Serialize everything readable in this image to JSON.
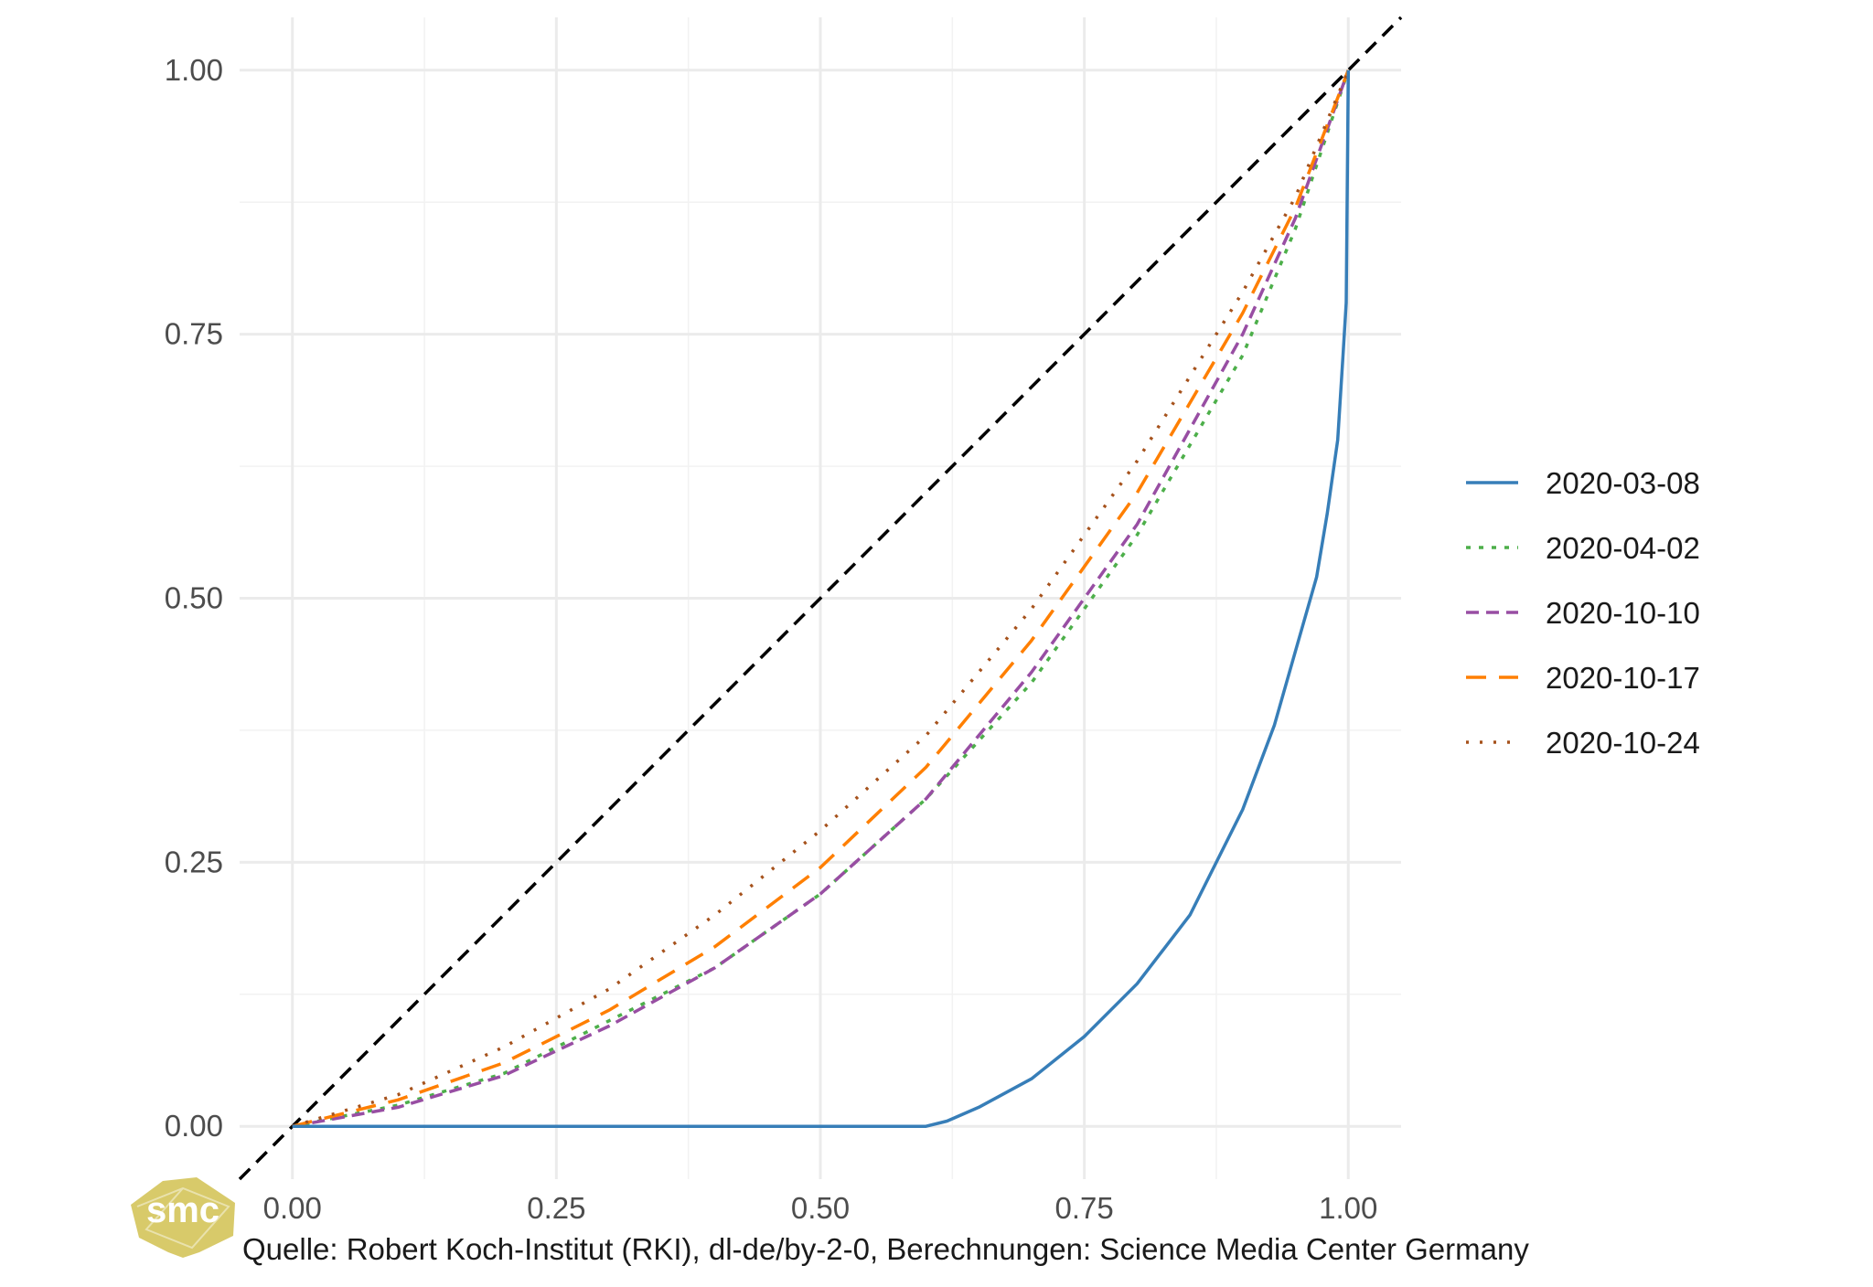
{
  "chart_data": {
    "type": "line",
    "xlim": [
      -0.05,
      1.05
    ],
    "ylim": [
      -0.05,
      1.05
    ],
    "x_ticks": [
      0,
      0.25,
      0.5,
      0.75,
      1
    ],
    "x_tick_labels": [
      "0.00",
      "0.25",
      "0.50",
      "0.75",
      "1.00"
    ],
    "y_ticks": [
      0,
      0.25,
      0.5,
      0.75,
      1
    ],
    "y_tick_labels": [
      "0.00",
      "0.25",
      "0.50",
      "0.75",
      "1.00"
    ],
    "grid": true,
    "legend_position": "right",
    "reference_line": {
      "style": "dashed",
      "color": "#000000",
      "x": [
        -0.05,
        1.05
      ],
      "y": [
        -0.05,
        1.05
      ]
    },
    "series": [
      {
        "name": "2020-03-08",
        "color": "#377EB8",
        "dash": "solid",
        "x": [
          0,
          0.6,
          0.62,
          0.65,
          0.7,
          0.75,
          0.8,
          0.85,
          0.9,
          0.93,
          0.95,
          0.97,
          0.98,
          0.99,
          0.995,
          0.998,
          1.0
        ],
        "y": [
          0,
          0,
          0.005,
          0.018,
          0.045,
          0.085,
          0.135,
          0.2,
          0.3,
          0.38,
          0.45,
          0.52,
          0.58,
          0.65,
          0.73,
          0.78,
          1.0
        ]
      },
      {
        "name": "2020-04-02",
        "color": "#4DAF4A",
        "dash": "dotted",
        "x": [
          0,
          0.1,
          0.2,
          0.3,
          0.4,
          0.5,
          0.6,
          0.7,
          0.8,
          0.9,
          0.95,
          1.0
        ],
        "y": [
          0,
          0.02,
          0.05,
          0.1,
          0.15,
          0.22,
          0.31,
          0.42,
          0.56,
          0.73,
          0.85,
          1.0
        ]
      },
      {
        "name": "2020-10-10",
        "color": "#984EA3",
        "dash": "dashed",
        "x": [
          0,
          0.1,
          0.2,
          0.3,
          0.4,
          0.5,
          0.6,
          0.7,
          0.8,
          0.9,
          0.95,
          1.0
        ],
        "y": [
          0,
          0.018,
          0.048,
          0.095,
          0.15,
          0.22,
          0.31,
          0.43,
          0.57,
          0.75,
          0.86,
          1.0
        ]
      },
      {
        "name": "2020-10-17",
        "color": "#FF7F00",
        "dash": "longdash",
        "x": [
          0,
          0.1,
          0.2,
          0.3,
          0.4,
          0.5,
          0.6,
          0.7,
          0.8,
          0.9,
          0.95,
          1.0
        ],
        "y": [
          0,
          0.025,
          0.06,
          0.11,
          0.17,
          0.245,
          0.34,
          0.46,
          0.6,
          0.77,
          0.87,
          1.0
        ]
      },
      {
        "name": "2020-10-24",
        "color": "#A6521C",
        "dash": "finedotted",
        "x": [
          0,
          0.1,
          0.2,
          0.3,
          0.4,
          0.5,
          0.6,
          0.7,
          0.8,
          0.9,
          0.95,
          1.0
        ],
        "y": [
          0,
          0.03,
          0.075,
          0.13,
          0.2,
          0.28,
          0.37,
          0.49,
          0.63,
          0.79,
          0.88,
          1.0
        ]
      }
    ]
  },
  "caption": "Quelle: Robert Koch-Institut (RKI), dl-de/by-2-0, Berechnungen: Science Media Center Germany",
  "logo": {
    "text": "smc",
    "color": "#D4C45A"
  }
}
